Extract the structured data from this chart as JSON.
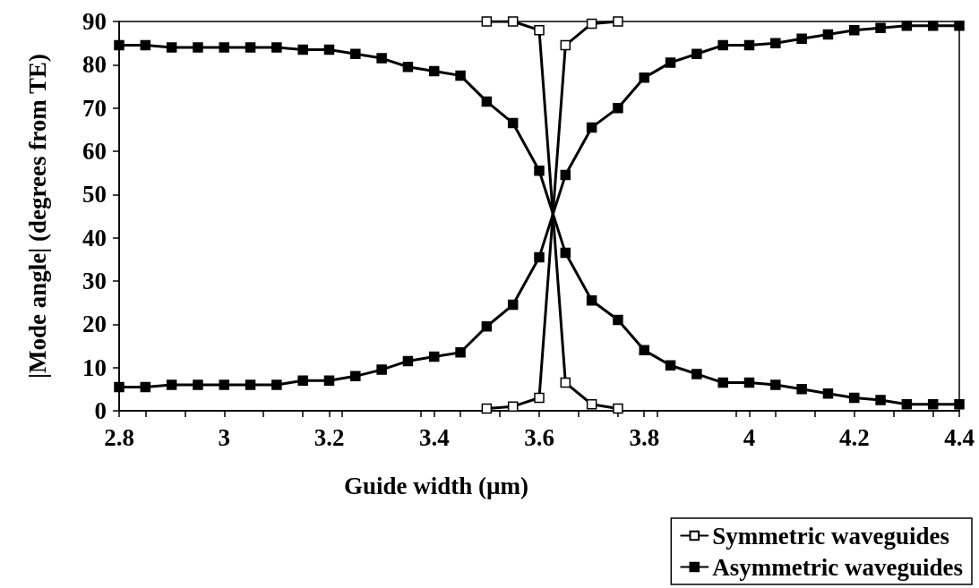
{
  "chart_data": {
    "type": "line",
    "xlabel": "Guide width (µm)",
    "ylabel": "|Mode angle| (degrees from TE)",
    "xlim": [
      2.8,
      4.4
    ],
    "xticks": [
      2.8,
      3,
      3.2,
      3.4,
      3.6,
      3.8,
      4,
      4.2,
      4.4
    ],
    "ylim": [
      0,
      90
    ],
    "yticks": [
      0,
      10,
      20,
      30,
      40,
      50,
      60,
      70,
      80,
      90
    ],
    "grid": false,
    "legend": "bottom right",
    "marker": "square",
    "line_style": "solid",
    "series": [
      {
        "name": "Symmetric waveguides",
        "color": "#000000",
        "x": [
          3.5,
          3.55,
          3.6,
          3.65,
          3.7,
          3.75
        ],
        "values": [
          90,
          90,
          88,
          6.5,
          1.5,
          0.5
        ]
      },
      {
        "color": "#000000",
        "x": [
          3.5,
          3.55,
          3.6,
          3.65,
          3.7,
          3.75
        ],
        "values": [
          0.5,
          1,
          3,
          84.5,
          89.5,
          90
        ]
      },
      {
        "name": "Asymmetric waveguides",
        "color": "#000000",
        "x": [
          2.8,
          2.85,
          2.9,
          2.95,
          3,
          3.05,
          3.1,
          3.15,
          3.2,
          3.25,
          3.3,
          3.35,
          3.4,
          3.45,
          3.5,
          3.55,
          3.6,
          3.65,
          3.7,
          3.75,
          3.8,
          3.85,
          3.9,
          3.95,
          4,
          4.05,
          4.1,
          4.15,
          4.2,
          4.25,
          4.3,
          4.35,
          4.4
        ],
        "values": [
          84.5,
          84.5,
          84,
          84,
          84,
          84,
          84,
          83.5,
          83.5,
          82.5,
          81.5,
          79.5,
          78.5,
          77.5,
          71.5,
          66.5,
          55.5,
          36.5,
          25.5,
          21,
          14,
          10.5,
          8.5,
          6.5,
          6.5,
          6,
          5,
          4,
          3,
          2.5,
          1.5,
          1.5,
          1.5
        ]
      },
      {
        "color": "#000000",
        "x": [
          2.8,
          2.85,
          2.9,
          2.95,
          3,
          3.05,
          3.1,
          3.15,
          3.2,
          3.25,
          3.3,
          3.35,
          3.4,
          3.45,
          3.5,
          3.55,
          3.6,
          3.65,
          3.7,
          3.75,
          3.8,
          3.85,
          3.9,
          3.95,
          4,
          4.05,
          4.1,
          4.15,
          4.2,
          4.25,
          4.3,
          4.35,
          4.4
        ],
        "values": [
          5.5,
          5.5,
          6,
          6,
          6,
          6,
          6,
          7,
          7,
          8,
          9.5,
          11.5,
          12.5,
          13.5,
          19.5,
          24.5,
          35.5,
          54.5,
          65.5,
          70,
          77,
          80.5,
          82.5,
          84.5,
          84.5,
          85,
          86,
          87,
          88,
          88.5,
          89,
          89,
          89
        ]
      }
    ]
  }
}
